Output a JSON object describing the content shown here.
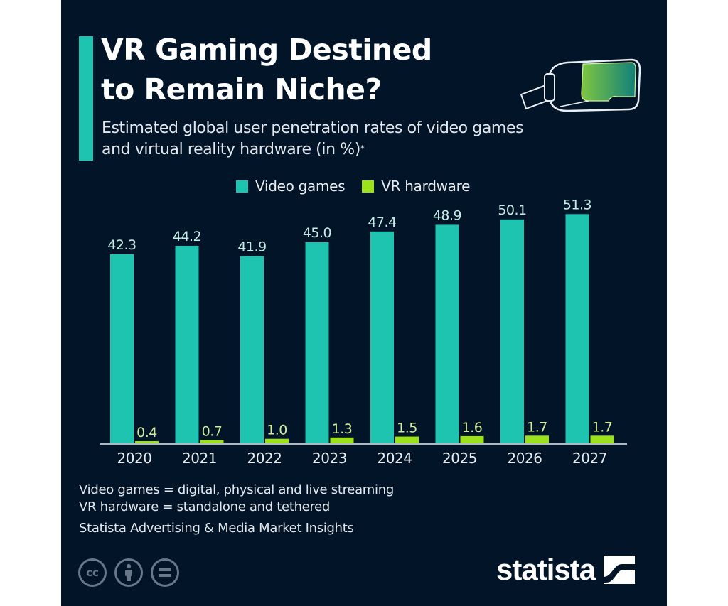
{
  "header": {
    "title_line1": "VR Gaming Destined",
    "title_line2": "to Remain Niche?",
    "subtitle_line1": "Estimated global user penetration rates of video games",
    "subtitle_line2": "and virtual reality hardware (in %)",
    "subtitle_marker": "*",
    "icon": "vr-headset-icon"
  },
  "colors": {
    "background": "#021428",
    "video_games": "#1ec4b0",
    "vr_hardware": "#9be21c",
    "accent": "#1ec4b0"
  },
  "chart_data": {
    "type": "bar",
    "title": "VR Gaming Destined to Remain Niche?",
    "subtitle": "Estimated global user penetration rates of video games and virtual reality hardware (in %)*",
    "xlabel": "",
    "ylabel": "",
    "ylim": [
      0,
      55
    ],
    "grid": false,
    "legend_position": "top-center",
    "categories": [
      "2020",
      "2021",
      "2022",
      "2023",
      "2024",
      "2025",
      "2026",
      "2027"
    ],
    "series": [
      {
        "name": "Video games",
        "color": "#1ec4b0",
        "values": [
          42.3,
          44.2,
          41.9,
          45.0,
          47.4,
          48.9,
          50.1,
          51.3
        ],
        "labels": [
          "42.3",
          "44.2",
          "41.9",
          "45.0",
          "47.4",
          "48.9",
          "50.1",
          "51.3"
        ]
      },
      {
        "name": "VR hardware",
        "color": "#9be21c",
        "values": [
          0.4,
          0.7,
          1.0,
          1.3,
          1.5,
          1.6,
          1.7,
          1.7
        ],
        "labels": [
          "0.4",
          "0.7",
          "1.0",
          "1.3",
          "1.5",
          "1.6",
          "1.7",
          "1.7"
        ]
      }
    ]
  },
  "legend": {
    "items": [
      {
        "label": "Video games"
      },
      {
        "label": "VR hardware"
      }
    ]
  },
  "notes": {
    "line1": "Video games = digital, physical and live streaming",
    "line2": "VR hardware = standalone and tethered",
    "source": "Statista Advertising & Media Market Insights"
  },
  "footer": {
    "license_icons": [
      "cc-icon",
      "attribution-icon",
      "no-derivatives-icon"
    ],
    "cc_text": "cc",
    "logo_text": "statista"
  }
}
